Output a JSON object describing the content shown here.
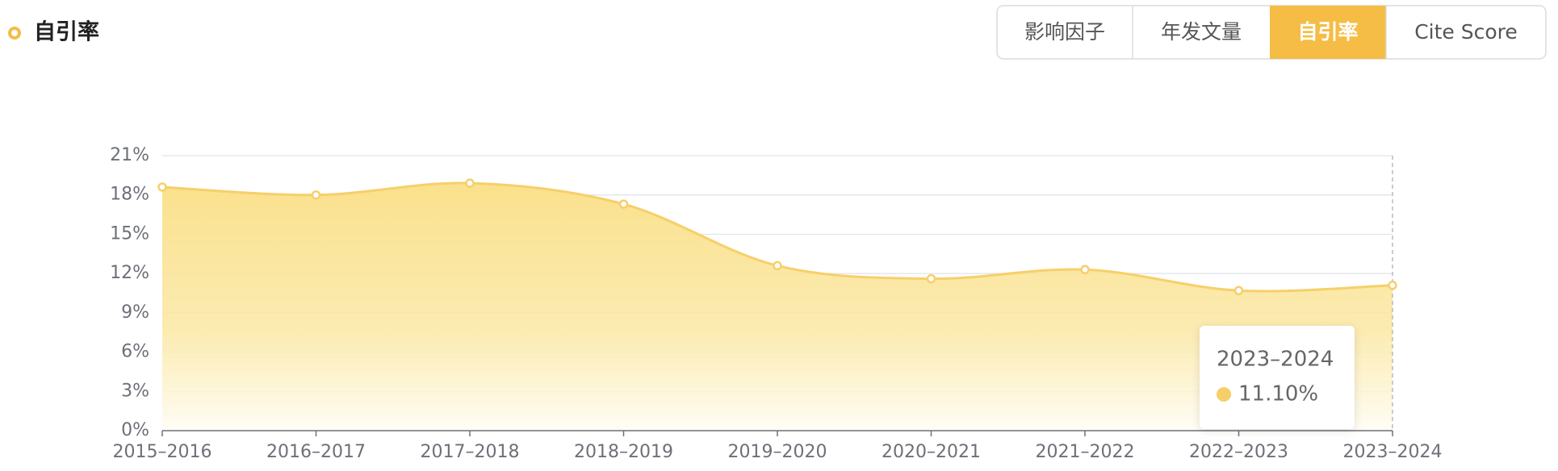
{
  "header": {
    "title": "自引率",
    "tabs": [
      "影响因子",
      "年发文量",
      "自引率",
      "Cite Score"
    ],
    "active_tab": 2
  },
  "chart_data": {
    "type": "line",
    "area": true,
    "smooth": true,
    "categories": [
      "2015–2016",
      "2016–2017",
      "2017–2018",
      "2018–2019",
      "2019–2020",
      "2020–2021",
      "2021–2022",
      "2022–2023",
      "2023–2024"
    ],
    "series": [
      {
        "name": "自引率",
        "color": "#f7cf6a",
        "values": [
          18.6,
          18.0,
          18.9,
          17.3,
          12.6,
          11.6,
          12.3,
          10.7,
          11.1
        ]
      }
    ],
    "ylim": [
      0,
      21
    ],
    "yticks": [
      {
        "value": 0,
        "label": "0%"
      },
      {
        "value": 3,
        "label": "3%"
      },
      {
        "value": 6,
        "label": "6%"
      },
      {
        "value": 9,
        "label": "9%"
      },
      {
        "value": 12,
        "label": "12%"
      },
      {
        "value": 15,
        "label": "15%"
      },
      {
        "value": 18,
        "label": "18%"
      },
      {
        "value": 21,
        "label": "21%"
      }
    ],
    "grid": true,
    "tooltip": {
      "title": "2023–2024",
      "label": "11.10%"
    }
  }
}
